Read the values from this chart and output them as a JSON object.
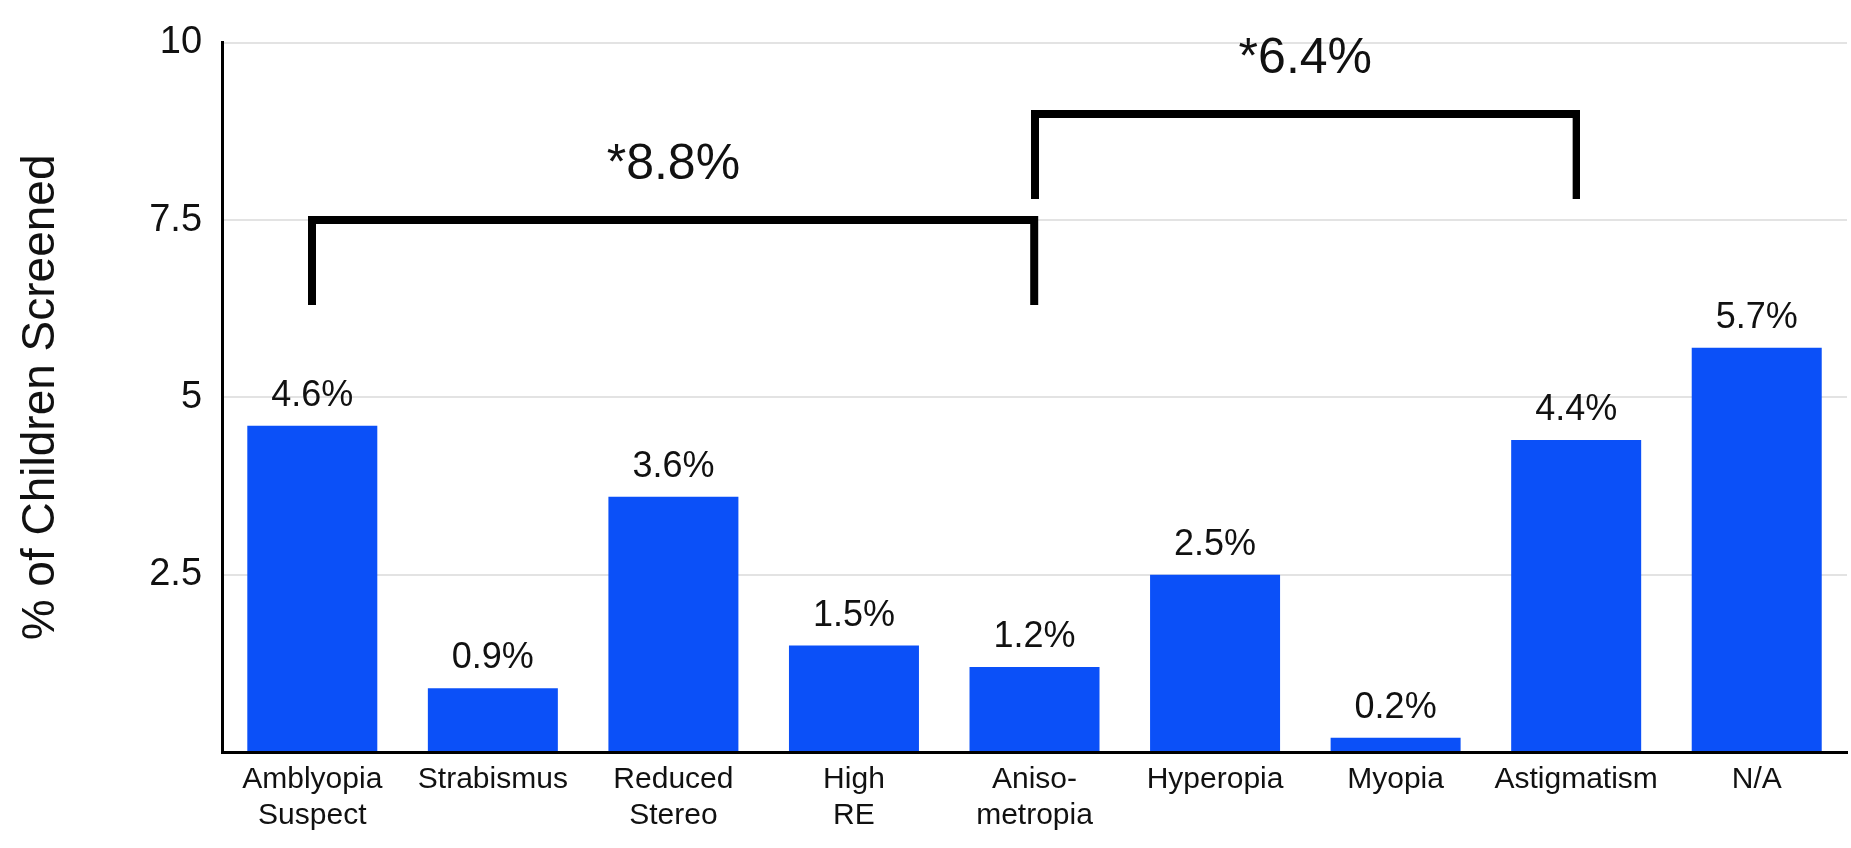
{
  "chart_data": {
    "type": "bar",
    "ylabel": "% of Children Screened",
    "categories": [
      "Amblyopia Suspect",
      "Strabismus",
      "Reduced Stereo",
      "High RE",
      "Aniso-metropia",
      "Hyperopia",
      "Myopia",
      "Astigmatism",
      "N/A"
    ],
    "values": [
      4.6,
      0.9,
      3.6,
      1.5,
      1.2,
      2.5,
      0.2,
      4.4,
      5.7
    ],
    "value_labels": [
      "4.6%",
      "0.9%",
      "3.6%",
      "1.5%",
      "1.2%",
      "2.5%",
      "0.2%",
      "4.4%",
      "5.7%"
    ],
    "color": "#0b50f8",
    "ylim": [
      0,
      10
    ],
    "yticks": [
      {
        "value": 0,
        "label": null
      },
      2.5,
      5,
      7.5,
      10
    ],
    "grid": "y",
    "annotations": [
      "*8.8%",
      "*6.4%"
    ]
  }
}
